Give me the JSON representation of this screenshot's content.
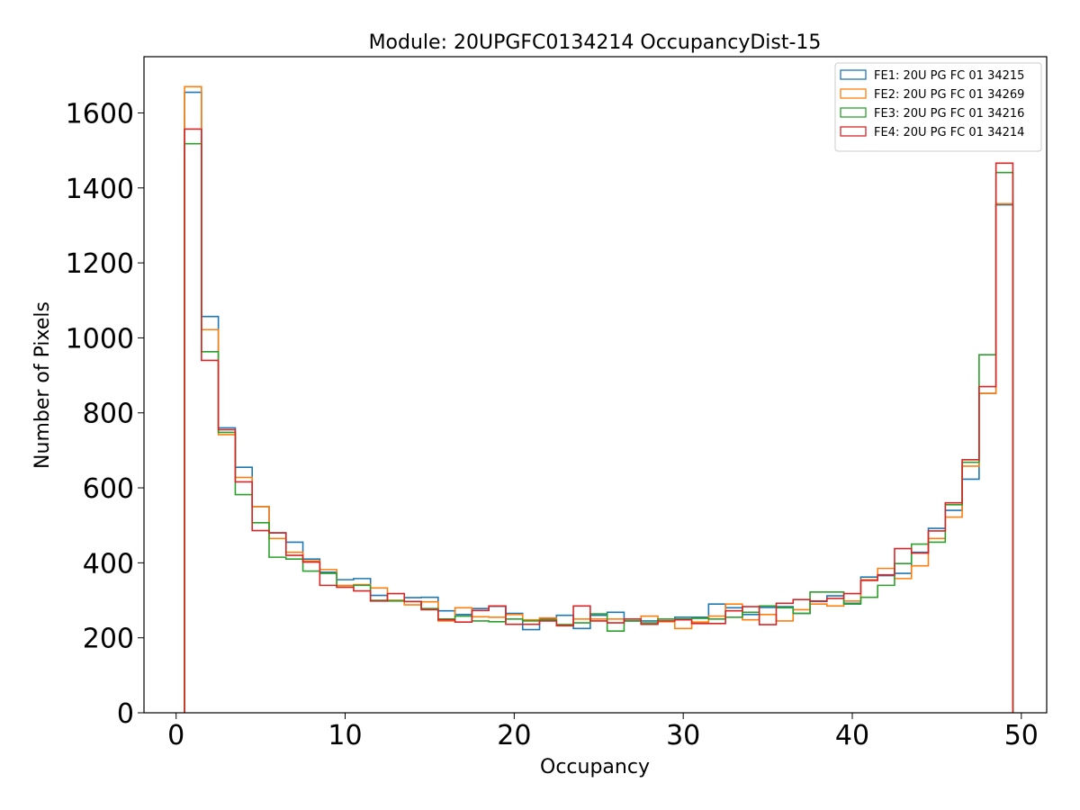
{
  "chart_data": {
    "type": "step-histogram",
    "title": "Module: 20UPGFC0134214 OccupancyDist-15",
    "xlabel": "Occupancy",
    "ylabel": "Number of Pixels",
    "xlim": [
      -1.9,
      51.5
    ],
    "ylim": [
      0,
      1750
    ],
    "xticks": [
      0,
      10,
      20,
      30,
      40,
      50
    ],
    "yticks": [
      0,
      200,
      400,
      600,
      800,
      1000,
      1200,
      1400,
      1600
    ],
    "bins": {
      "start": 0.5,
      "width": 1.0,
      "count": 49
    },
    "legend_position": "top-right",
    "series": [
      {
        "name": "FE1: 20U PG FC 01 34215",
        "color": "#1f77b4",
        "values": [
          1655,
          1057,
          760,
          655,
          550,
          480,
          455,
          410,
          375,
          355,
          358,
          313,
          300,
          307,
          308,
          272,
          262,
          278,
          284,
          265,
          222,
          250,
          260,
          225,
          260,
          268,
          245,
          245,
          250,
          255,
          255,
          290,
          280,
          262,
          281,
          283,
          265,
          297,
          312,
          292,
          362,
          366,
          372,
          428,
          492,
          540,
          623,
          852,
          1355
        ]
      },
      {
        "name": "FE2: 20U PG FC 01 34269",
        "color": "#ff7f0e",
        "values": [
          1670,
          1022,
          742,
          628,
          550,
          465,
          428,
          405,
          382,
          340,
          342,
          333,
          300,
          288,
          296,
          245,
          280,
          256,
          255,
          262,
          248,
          253,
          235,
          250,
          250,
          250,
          250,
          258,
          243,
          225,
          242,
          258,
          290,
          248,
          262,
          245,
          275,
          290,
          285,
          298,
          355,
          385,
          358,
          392,
          465,
          522,
          658,
          852,
          1358
        ]
      },
      {
        "name": "FE3: 20U PG FC 01 34216",
        "color": "#2ca02c",
        "values": [
          1518,
          963,
          748,
          582,
          507,
          415,
          410,
          378,
          372,
          335,
          340,
          300,
          298,
          297,
          278,
          250,
          258,
          245,
          243,
          250,
          245,
          248,
          235,
          240,
          264,
          218,
          245,
          240,
          250,
          250,
          252,
          250,
          255,
          268,
          285,
          280,
          265,
          322,
          322,
          290,
          308,
          340,
          398,
          450,
          455,
          555,
          668,
          955,
          1441
        ]
      },
      {
        "name": "FE4: 20U PG FC 01 34214",
        "color": "#d62728",
        "values": [
          1557,
          940,
          755,
          616,
          486,
          480,
          420,
          402,
          340,
          335,
          325,
          298,
          318,
          297,
          275,
          248,
          242,
          273,
          285,
          236,
          236,
          245,
          232,
          285,
          245,
          240,
          250,
          236,
          245,
          248,
          238,
          238,
          272,
          283,
          235,
          292,
          302,
          298,
          305,
          318,
          353,
          368,
          438,
          426,
          485,
          560,
          675,
          870,
          1466
        ]
      }
    ]
  }
}
